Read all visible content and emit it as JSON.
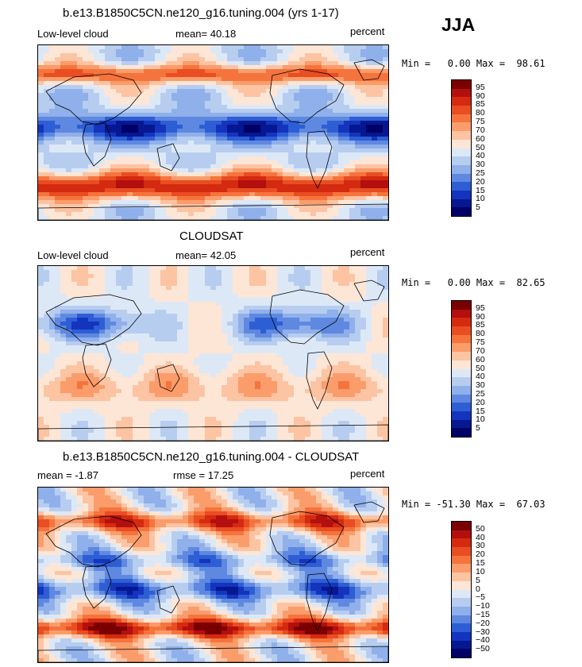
{
  "season": "JJA",
  "panels": [
    {
      "title": "b.e13.B1850C5CN.ne120_g16.tuning.004 (yrs 1-17)",
      "left_label": "Low-level cloud",
      "stat_text": "mean=  40.18",
      "units": "percent",
      "minmax": "Min =   0.00 Max =  98.61",
      "field": "model",
      "colorbar": {
        "labels": [
          "95",
          "90",
          "85",
          "80",
          "75",
          "70",
          "60",
          "50",
          "40",
          "30",
          "25",
          "20",
          "15",
          "10",
          "5"
        ],
        "colors": [
          "#7a0000",
          "#b30f0f",
          "#d42a10",
          "#e94d22",
          "#f5743d",
          "#fb9c6b",
          "#fcc4a3",
          "#fde6d6",
          "#dde8f7",
          "#b7cdf0",
          "#8fb0ea",
          "#5f88e0",
          "#2e5ed4",
          "#1434bd",
          "#061891",
          "#000066"
        ]
      }
    },
    {
      "title": "CLOUDSAT",
      "left_label": "Low-level cloud",
      "stat_text": "mean=  42.05",
      "units": "percent",
      "minmax": "Min =   0.00 Max =  82.65",
      "field": "obs",
      "colorbar": {
        "labels": [
          "95",
          "90",
          "85",
          "80",
          "75",
          "70",
          "60",
          "50",
          "40",
          "30",
          "25",
          "20",
          "15",
          "10",
          "5"
        ],
        "colors": [
          "#7a0000",
          "#b30f0f",
          "#d42a10",
          "#e94d22",
          "#f5743d",
          "#fb9c6b",
          "#fcc4a3",
          "#fde6d6",
          "#dde8f7",
          "#b7cdf0",
          "#8fb0ea",
          "#5f88e0",
          "#2e5ed4",
          "#1434bd",
          "#061891",
          "#000066"
        ]
      }
    },
    {
      "title": "b.e13.B1850C5CN.ne120_g16.tuning.004 - CLOUDSAT",
      "left_label": "mean =  -1.87",
      "stat_text": "rmse =  17.25",
      "units": "percent",
      "minmax": "Min = -51.30 Max =  67.03",
      "field": "diff",
      "colorbar": {
        "labels": [
          "50",
          "40",
          "30",
          "20",
          "15",
          "10",
          "5",
          "0",
          "−5",
          "−10",
          "−15",
          "−20",
          "−30",
          "−40",
          "−50"
        ],
        "colors": [
          "#7a0000",
          "#b30f0f",
          "#d42a10",
          "#e94d22",
          "#f5743d",
          "#fb9c6b",
          "#fcc4a3",
          "#fde6d6",
          "#dde8f7",
          "#b7cdf0",
          "#8fb0ea",
          "#5f88e0",
          "#2e5ed4",
          "#1434bd",
          "#061891",
          "#000066"
        ]
      }
    }
  ]
}
